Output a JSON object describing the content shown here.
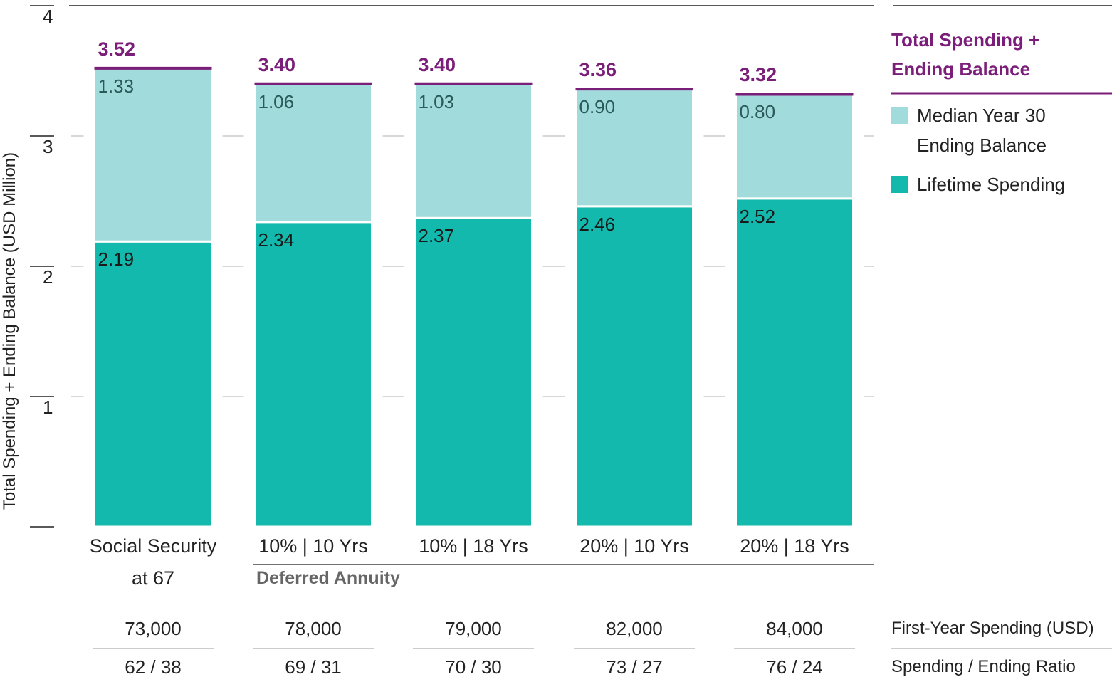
{
  "chart_data": {
    "type": "stacked_bar",
    "y_label": "Total Spending + Ending Balance (USD Million)",
    "categories": [
      "Social Security at 67",
      "10% | 10 Yrs",
      "10% | 18 Yrs",
      "20% | 10 Yrs",
      "20% | 18 Yrs"
    ],
    "group_label": "Deferred Annuity",
    "series": [
      {
        "name": "Lifetime Spending",
        "color": "#13b9ad",
        "values": [
          2.19,
          2.34,
          2.37,
          2.46,
          2.52
        ]
      },
      {
        "name": "Median Year 30 Ending Balance",
        "color": "#a2dbdb",
        "values": [
          1.33,
          1.06,
          1.03,
          0.9,
          0.8
        ],
        "value_labels": [
          "1.33",
          "1.06",
          "1.03",
          "0.90",
          "0.80"
        ]
      }
    ],
    "totals": {
      "name": "Total Spending + Ending Balance",
      "color": "#7b1e7a",
      "values": [
        3.52,
        3.4,
        3.4,
        3.36,
        3.32
      ],
      "value_labels": [
        "3.52",
        "3.40",
        "3.40",
        "3.36",
        "3.32"
      ]
    },
    "ylim": [
      0,
      4
    ],
    "yticks": [
      1,
      2,
      3,
      4
    ],
    "grid": true,
    "table": {
      "rows": [
        {
          "label": "First-Year Spending (USD)",
          "cells": [
            "73,000",
            "78,000",
            "79,000",
            "82,000",
            "84,000"
          ]
        },
        {
          "label": "Spending / Ending Ratio",
          "cells": [
            "62 / 38",
            "69 / 31",
            "70 / 30",
            "73 / 27",
            "76 / 24"
          ]
        }
      ]
    }
  }
}
